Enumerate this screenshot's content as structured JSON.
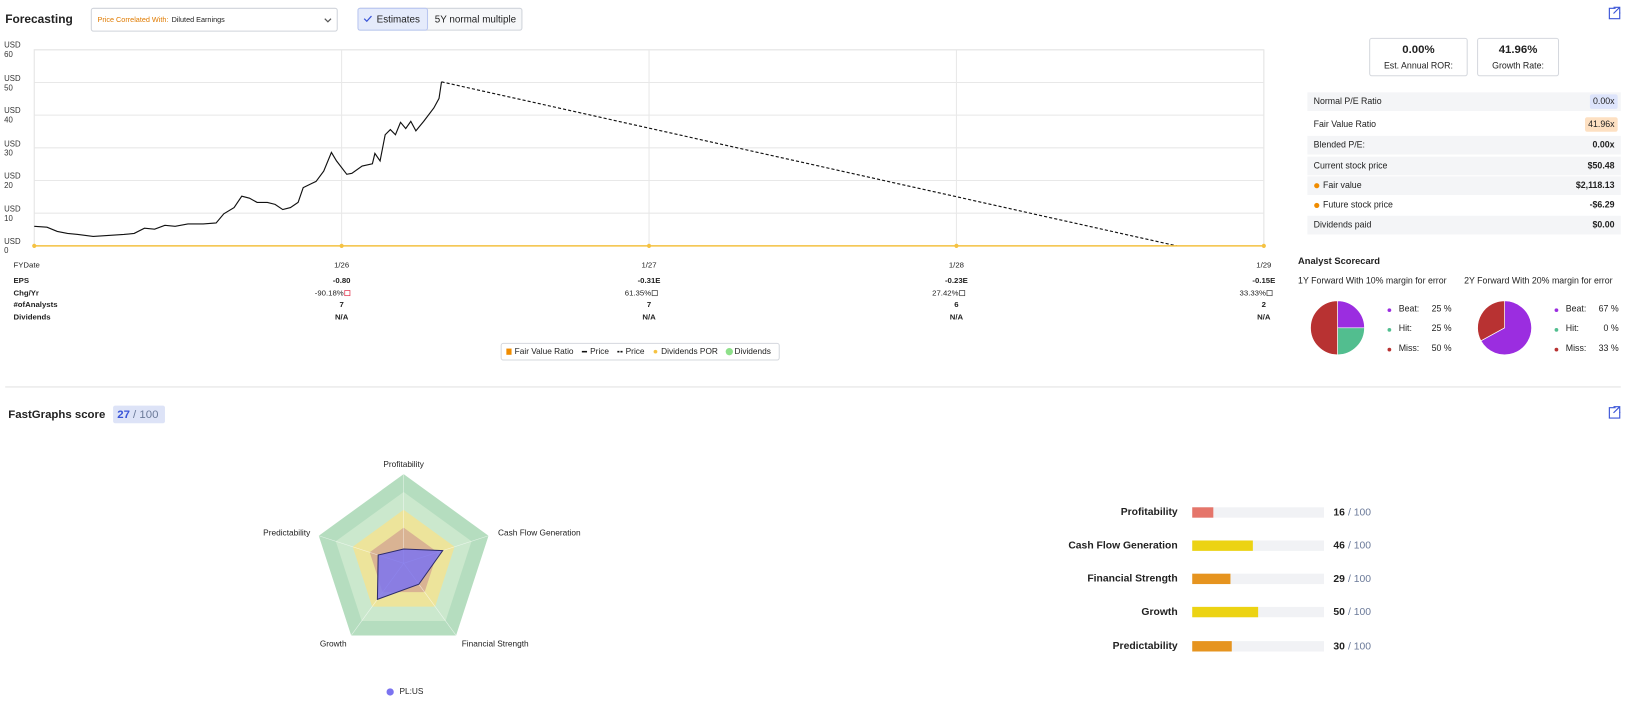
{
  "header": {
    "title": "Forecasting",
    "correlation_label": "Price Correlated With:",
    "correlation_value": "Diluted Earnings",
    "toggles": [
      "Estimates",
      "5Y normal multiple"
    ]
  },
  "chart_data": [
    {
      "type": "line",
      "ylim": [
        0,
        60
      ],
      "yticks": [
        {
          "value": 0,
          "label": "USD\n0"
        },
        {
          "value": 10,
          "label": "USD\n10"
        },
        {
          "value": 20,
          "label": "USD\n20"
        },
        {
          "value": 30,
          "label": "USD\n30"
        },
        {
          "value": 40,
          "label": "USD\n40"
        },
        {
          "value": 50,
          "label": "USD\n50"
        },
        {
          "value": 60,
          "label": "USD\n60"
        }
      ],
      "xlim": [
        0,
        48
      ],
      "xticks": [
        {
          "value": 12,
          "label": "1/26"
        },
        {
          "value": 24,
          "label": "1/27"
        },
        {
          "value": 36,
          "label": "1/28"
        },
        {
          "value": 48,
          "label": "1/29"
        }
      ],
      "grid": true,
      "series": [
        {
          "name": "Fair Value Ratio",
          "color": "#f08c00",
          "style": "square",
          "x": [],
          "values": []
        },
        {
          "name": "Price",
          "color": "#111111",
          "style": "line",
          "x": [
            0,
            0.5,
            0.9,
            1.3,
            1.7,
            2.3,
            2.9,
            3.5,
            3.9,
            4.3,
            4.7,
            5.1,
            5.5,
            6.0,
            6.6,
            7.1,
            7.4,
            7.8,
            8.1,
            8.4,
            8.7,
            9.1,
            9.4,
            9.7,
            10.0,
            10.3,
            10.5,
            10.8,
            11.0,
            11.3,
            11.6,
            11.8,
            12.2,
            12.4,
            12.8,
            13.2,
            13.3,
            13.5,
            13.7,
            13.9,
            14.1,
            14.3,
            14.5,
            14.7,
            14.9,
            15.2,
            15.6,
            15.8,
            15.9
          ],
          "values": [
            6.0,
            5.7,
            4.4,
            3.8,
            3.5,
            2.9,
            3.2,
            3.5,
            3.8,
            5.4,
            5.1,
            6.3,
            6.0,
            6.7,
            6.7,
            7.0,
            9.8,
            11.7,
            15.2,
            14.6,
            13.3,
            13.3,
            12.7,
            11.1,
            11.7,
            13.3,
            17.8,
            19.0,
            19.7,
            22.9,
            28.6,
            26.0,
            21.9,
            22.2,
            24.4,
            25.1,
            28.3,
            26.0,
            34.0,
            35.6,
            34.0,
            37.8,
            35.9,
            38.1,
            35.2,
            38.1,
            42.2,
            45.1,
            50.2
          ]
        },
        {
          "name": "Price",
          "color": "#111111",
          "style": "dashed",
          "x": [
            15.9,
            44.6
          ],
          "values": [
            50.2,
            0
          ]
        },
        {
          "name": "Dividends POR",
          "color": "#f5c242",
          "style": "dot",
          "x": [
            0,
            12,
            24,
            36,
            48
          ],
          "values": [
            0,
            0,
            0,
            0,
            0
          ]
        },
        {
          "name": "Dividends",
          "color": "#8ee08a",
          "style": "circle",
          "x": [],
          "values": []
        }
      ],
      "table": {
        "header": "FYDate",
        "rows": [
          {
            "label": "EPS",
            "cells": [
              "-0.80",
              "-0.31E",
              "-0.23E",
              "-0.15E"
            ]
          },
          {
            "label": "Chg/Yr",
            "icon": true,
            "cells": [
              "-90.18%",
              "61.35%",
              "27.42%",
              "33.33%"
            ]
          },
          {
            "label": "#ofAnalysts",
            "cells": [
              "7",
              "7",
              "6",
              "2"
            ]
          },
          {
            "label": "Dividends",
            "cells": [
              "N/A",
              "N/A",
              "N/A",
              "N/A"
            ]
          }
        ]
      }
    },
    {
      "type": "pie",
      "title": "1Y Forward With 10% margin for error",
      "categories": [
        "Beat:",
        "Hit:",
        "Miss:"
      ],
      "values": [
        25,
        25,
        50
      ],
      "value_labels": [
        "25 %",
        "25 %",
        "50 %"
      ],
      "colors": [
        "#9b2de0",
        "#52be8f",
        "#b83232"
      ]
    },
    {
      "type": "pie",
      "title": "2Y Forward With 20% margin for error",
      "categories": [
        "Beat:",
        "Hit:",
        "Miss:"
      ],
      "values": [
        67,
        0,
        33
      ],
      "value_labels": [
        "67 %",
        "0 %",
        "33 %"
      ],
      "colors": [
        "#9b2de0",
        "#52be8f",
        "#b83232"
      ]
    },
    {
      "type": "radar",
      "title": "FastGraphs score",
      "score": 27,
      "max_label": "/ 100",
      "categories": [
        "Profitability",
        "Cash Flow Generation",
        "Financial Strength",
        "Growth",
        "Predictability"
      ],
      "values": [
        16,
        46,
        29,
        50,
        30
      ],
      "rlim": [
        0,
        100
      ],
      "rticks": [
        40,
        60,
        80,
        100
      ],
      "ring_colors": [
        "#d9b393",
        "#ede49b",
        "#cbe8cd",
        "#b5ddbf"
      ],
      "series_name": "PL:US",
      "color": "#7b73f0",
      "bar_colors": [
        "#e5756a",
        "#ecd313",
        "#e6941f",
        "#ecd313",
        "#e6941f"
      ]
    }
  ],
  "summary": {
    "stats": [
      {
        "value": "0.00%",
        "label": "Est. Annual ROR:",
        "color": "#222222"
      },
      {
        "value": "41.96%",
        "label": "Growth Rate:",
        "color": "#2e7d4f"
      }
    ],
    "metrics": [
      {
        "label": "Normal P/E Ratio",
        "value": "0.00x",
        "badge": "#dde4fb",
        "value_color": "#3a55d8"
      },
      {
        "label": "Fair Value Ratio",
        "value": "41.96x",
        "badge": "#fde0c2",
        "value_color": "#e07b00"
      },
      {
        "label": "Blended P/E:",
        "value": "0.00x"
      },
      {
        "label": "Current stock price",
        "value": "$50.48"
      },
      {
        "label": "Fair value",
        "value": "$2,118.13",
        "dot": "#f08c00"
      },
      {
        "label": "Future stock price",
        "value": "-$6.29",
        "dot": "#f08c00"
      },
      {
        "label": "Dividends paid",
        "value": "$0.00"
      }
    ],
    "scorecard_title": "Analyst Scorecard"
  }
}
